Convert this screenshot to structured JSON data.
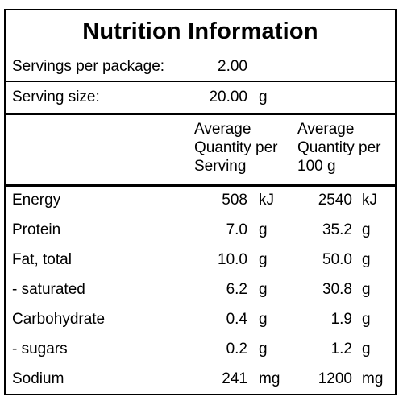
{
  "title": "Nutrition Information",
  "servings_per_package": {
    "label": "Servings per package:",
    "value": "2.00"
  },
  "serving_size": {
    "label": "Serving size:",
    "value": "20.00",
    "unit": "g"
  },
  "headers": {
    "per_serving": [
      "Average",
      "Quantity per",
      "Serving"
    ],
    "per_100g": [
      "Average",
      "Quantity per",
      "100 g"
    ]
  },
  "rows": [
    {
      "name": "Energy",
      "serving": "508",
      "serving_unit": "kJ",
      "per100": "2540",
      "per100_unit": "kJ"
    },
    {
      "name": "Protein",
      "serving": "7.0",
      "serving_unit": "g",
      "per100": "35.2",
      "per100_unit": "g"
    },
    {
      "name": "Fat, total",
      "serving": "10.0",
      "serving_unit": "g",
      "per100": "50.0",
      "per100_unit": "g"
    },
    {
      "name": "- saturated",
      "serving": "6.2",
      "serving_unit": "g",
      "per100": "30.8",
      "per100_unit": "g"
    },
    {
      "name": "Carbohydrate",
      "serving": "0.4",
      "serving_unit": "g",
      "per100": "1.9",
      "per100_unit": "g"
    },
    {
      "name": "- sugars",
      "serving": "0.2",
      "serving_unit": "g",
      "per100": "1.2",
      "per100_unit": "g"
    },
    {
      "name": "Sodium",
      "serving": "241",
      "serving_unit": "mg",
      "per100": "1200",
      "per100_unit": "mg"
    }
  ]
}
